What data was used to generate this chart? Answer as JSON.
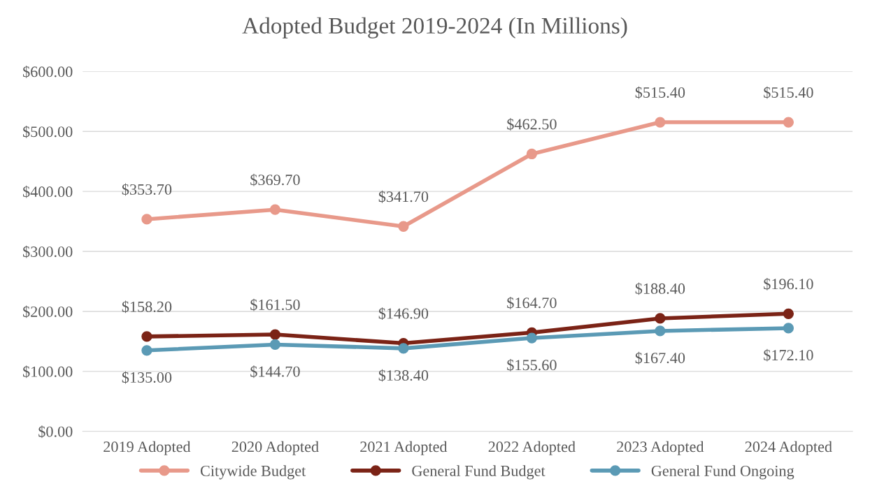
{
  "chart_data": {
    "type": "line",
    "title": "Adopted Budget 2019-2024 (In Millions)",
    "categories": [
      "2019 Adopted",
      "2020 Adopted",
      "2021 Adopted",
      "2022 Adopted",
      "2023 Adopted",
      "2024 Adopted"
    ],
    "series": [
      {
        "name": "Citywide Budget",
        "color": "#e8998a",
        "values": [
          353.7,
          369.7,
          341.7,
          462.5,
          515.4,
          515.4
        ],
        "value_labels": [
          "$353.70",
          "$369.70",
          "$341.70",
          "$462.50",
          "$515.40",
          "$515.40"
        ]
      },
      {
        "name": "General Fund Budget",
        "color": "#7b2316",
        "values": [
          158.2,
          161.5,
          146.9,
          164.7,
          188.4,
          196.1
        ],
        "value_labels": [
          "$158.20",
          "$161.50",
          "$146.90",
          "$164.70",
          "$188.40",
          "$196.10"
        ]
      },
      {
        "name": "General Fund Ongoing",
        "color": "#5b9ab5",
        "values": [
          135.0,
          144.7,
          138.4,
          155.6,
          167.4,
          172.1
        ],
        "value_labels": [
          "$135.00",
          "$144.70",
          "$138.40",
          "$155.60",
          "$167.40",
          "$172.10"
        ]
      }
    ],
    "ylim": [
      0,
      600
    ],
    "yticks": [
      {
        "value": 0,
        "label": "$0.00"
      },
      {
        "value": 100,
        "label": "$100.00"
      },
      {
        "value": 200,
        "label": "$200.00"
      },
      {
        "value": 300,
        "label": "$300.00"
      },
      {
        "value": 400,
        "label": "$400.00"
      },
      {
        "value": 500,
        "label": "$500.00"
      },
      {
        "value": 600,
        "label": "$600.00"
      }
    ],
    "grid": "y",
    "legend": "bottom",
    "marker": "circle",
    "line_style": "solid"
  }
}
